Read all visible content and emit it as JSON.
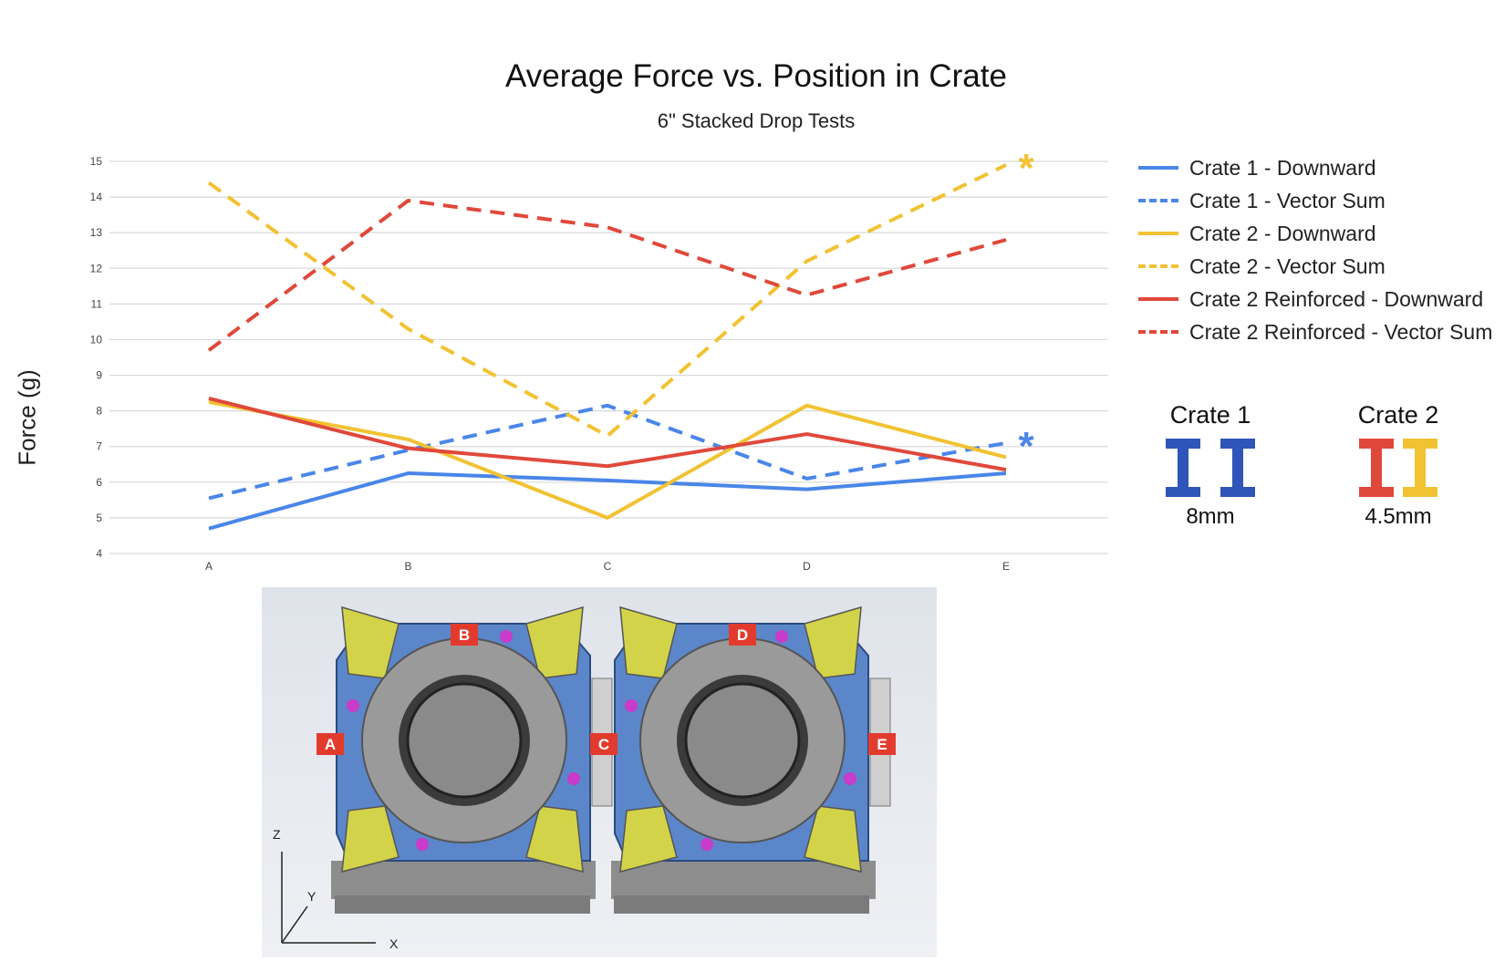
{
  "chart_data": {
    "type": "line",
    "title": "Average Force vs. Position in Crate",
    "subtitle": "6\" Stacked Drop Tests",
    "ylabel": "Force (g)",
    "xlabel": "",
    "categories": [
      "A",
      "B",
      "C",
      "D",
      "E"
    ],
    "ylim": [
      4,
      15
    ],
    "yticks": [
      4,
      5,
      6,
      7,
      8,
      9,
      10,
      11,
      12,
      13,
      14,
      15
    ],
    "grid": true,
    "legend_position": "right",
    "series": [
      {
        "name": "Crate 1 - Downward",
        "values": [
          4.7,
          6.25,
          6.05,
          5.8,
          6.25
        ],
        "color": "#4a86e8",
        "dashed": false
      },
      {
        "name": "Crate 1 - Vector Sum",
        "values": [
          5.55,
          6.9,
          8.15,
          6.1,
          7.1
        ],
        "color": "#4a86e8",
        "dashed": true
      },
      {
        "name": "Crate 2 - Downward",
        "values": [
          8.25,
          7.2,
          5.0,
          8.15,
          6.7
        ],
        "color": "#f1c232",
        "dashed": false
      },
      {
        "name": "Crate 2 - Vector Sum",
        "values": [
          14.4,
          10.3,
          7.3,
          12.2,
          14.9
        ],
        "color": "#f1c232",
        "dashed": true
      },
      {
        "name": "Crate 2 Reinforced - Downward",
        "values": [
          8.35,
          6.95,
          6.45,
          7.35,
          6.35
        ],
        "color": "#e0483a",
        "dashed": false
      },
      {
        "name": "Crate 2 Reinforced - Vector Sum",
        "values": [
          9.7,
          13.9,
          13.15,
          11.25,
          12.8
        ],
        "color": "#e0483a",
        "dashed": true
      }
    ],
    "annotations": [
      {
        "text": "*",
        "x": "E",
        "y": 15.0,
        "color": "#f1c232"
      },
      {
        "text": "*",
        "x": "E",
        "y": 7.2,
        "color": "#4a86e8"
      }
    ]
  },
  "crates": [
    {
      "title": "Crate 1",
      "size": "8mm",
      "beam_colors": [
        "#2f55b8",
        "#2f55b8"
      ]
    },
    {
      "title": "Crate 2",
      "size": "4.5mm",
      "beam_colors": [
        "#e0483a",
        "#f1c232"
      ]
    }
  ],
  "photo": {
    "position_labels": [
      "A",
      "B",
      "C",
      "D",
      "E"
    ],
    "axis_labels": {
      "z": "Z",
      "y": "Y",
      "x": "X"
    },
    "colors": {
      "frame": "#5b86c9",
      "bracket": "#d3d34a",
      "ring": "#9a9a9a",
      "marker": "#e23b2e"
    }
  }
}
